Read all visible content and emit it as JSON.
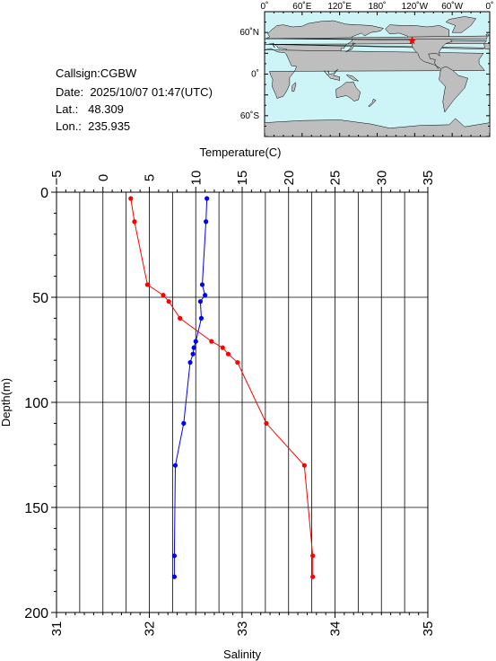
{
  "header": {
    "callsign": "Callsign:CGBW",
    "date_label": "Date:",
    "date_value": "2025/10/07 01:47(UTC)",
    "lat_label": "Lat.:",
    "lat_value": "48.309",
    "lon_label": "Lon.:",
    "lon_value": "235.935"
  },
  "map": {
    "top_labels": [
      "0˚",
      "60˚E",
      "120˚E",
      "180˚",
      "120˚W",
      "60˚W",
      "0˚"
    ],
    "side_labels": [
      "60˚N",
      "0˚",
      "60˚S"
    ],
    "ocean_color": "#cdf5f8",
    "land_color": "#bebebe",
    "marker": {
      "lon": 235.935,
      "lat": 48.309,
      "color": "#ff0000",
      "shape": "star"
    }
  },
  "chart_data": {
    "type": "line",
    "title": "",
    "ylabel": "Depth(m)",
    "ylim": [
      200,
      0
    ],
    "y_ticks": [
      0,
      50,
      100,
      150,
      200
    ],
    "top_axis": {
      "label": "Temperature(C)",
      "range": [
        -5,
        35
      ],
      "ticks": [
        -5,
        0,
        5,
        10,
        15,
        20,
        25,
        30,
        35
      ]
    },
    "bottom_axis": {
      "label": "Salinity",
      "range": [
        31,
        35
      ],
      "ticks": [
        31,
        32,
        33,
        34,
        35
      ]
    },
    "grid": true,
    "series": [
      {
        "axis": "top",
        "color": "#ff0000",
        "points": [
          {
            "x": 3.0,
            "y": 3
          },
          {
            "x": 3.4,
            "y": 14
          },
          {
            "x": 4.8,
            "y": 44
          },
          {
            "x": 6.5,
            "y": 49
          },
          {
            "x": 7.1,
            "y": 52
          },
          {
            "x": 8.3,
            "y": 60
          },
          {
            "x": 11.7,
            "y": 71
          },
          {
            "x": 12.9,
            "y": 74
          },
          {
            "x": 13.5,
            "y": 77
          },
          {
            "x": 14.5,
            "y": 81
          },
          {
            "x": 17.6,
            "y": 110
          },
          {
            "x": 21.7,
            "y": 130
          },
          {
            "x": 22.6,
            "y": 173
          },
          {
            "x": 22.6,
            "y": 183
          }
        ]
      },
      {
        "axis": "bottom",
        "color": "#0000ff",
        "points": [
          {
            "x": 32.62,
            "y": 3
          },
          {
            "x": 32.61,
            "y": 14
          },
          {
            "x": 32.57,
            "y": 44
          },
          {
            "x": 32.6,
            "y": 49
          },
          {
            "x": 32.55,
            "y": 52
          },
          {
            "x": 32.56,
            "y": 60
          },
          {
            "x": 32.5,
            "y": 71
          },
          {
            "x": 32.48,
            "y": 74
          },
          {
            "x": 32.47,
            "y": 77
          },
          {
            "x": 32.44,
            "y": 81
          },
          {
            "x": 32.37,
            "y": 110
          },
          {
            "x": 32.28,
            "y": 130
          },
          {
            "x": 32.27,
            "y": 173
          },
          {
            "x": 32.27,
            "y": 183
          }
        ]
      }
    ]
  }
}
